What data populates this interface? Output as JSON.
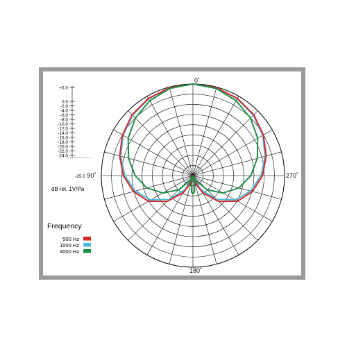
{
  "chart_data": {
    "type": "polar",
    "angle_labels": {
      "top": "0˚",
      "left": "90˚",
      "right": "270˚",
      "bottom": "180˚"
    },
    "db_scale": {
      "ticks": [
        "+5.0",
        "0.0",
        "-2.0",
        "-4.0",
        "-6.0",
        "-8.0",
        "-10.0",
        "-12.0",
        "-14.0",
        "-16.0",
        "-18.0",
        "-20.0",
        "-22.0",
        "-24.0"
      ],
      "inner_label": "-25.0"
    },
    "unit_label": "dB rel. 1V/Pa",
    "range_db": [
      -25,
      0
    ],
    "legend": {
      "title": "Frequency",
      "entries": [
        {
          "name": "500 Hz",
          "color": "#d42a2a"
        },
        {
          "name": "1000 Hz",
          "color": "#4bb8d8"
        },
        {
          "name": "4000 Hz",
          "color": "#1f8f4a"
        }
      ]
    },
    "series": [
      {
        "name": "500 Hz",
        "color": "#d42a2a",
        "angles": [
          0,
          15,
          30,
          45,
          60,
          75,
          90,
          105,
          120,
          135,
          150,
          160,
          170,
          180
        ],
        "values": [
          0,
          -0.2,
          -0.7,
          -1.5,
          -2.8,
          -4.3,
          -6.0,
          -8.2,
          -11.0,
          -15.0,
          -19.5,
          -22.5,
          -24.5,
          -25.0
        ]
      },
      {
        "name": "1000 Hz",
        "color": "#4bb8d8",
        "angles": [
          0,
          15,
          30,
          45,
          60,
          75,
          90,
          105,
          120,
          135,
          150,
          160,
          170,
          180
        ],
        "values": [
          0,
          -0.2,
          -0.8,
          -1.7,
          -3.0,
          -4.6,
          -6.4,
          -8.7,
          -11.7,
          -15.8,
          -20.5,
          -23.3,
          -24.8,
          -25.0
        ]
      },
      {
        "name": "4000 Hz",
        "color": "#1f8f4a",
        "angles": [
          0,
          15,
          30,
          45,
          60,
          75,
          90,
          105,
          120,
          135,
          150,
          160,
          165,
          170,
          175,
          180
        ],
        "values": [
          0,
          -0.4,
          -1.4,
          -2.8,
          -4.6,
          -6.8,
          -9.2,
          -12.0,
          -15.5,
          -19.5,
          -23.5,
          -24.7,
          -24.4,
          -22.5,
          -20.5,
          -20.0
        ]
      }
    ]
  }
}
